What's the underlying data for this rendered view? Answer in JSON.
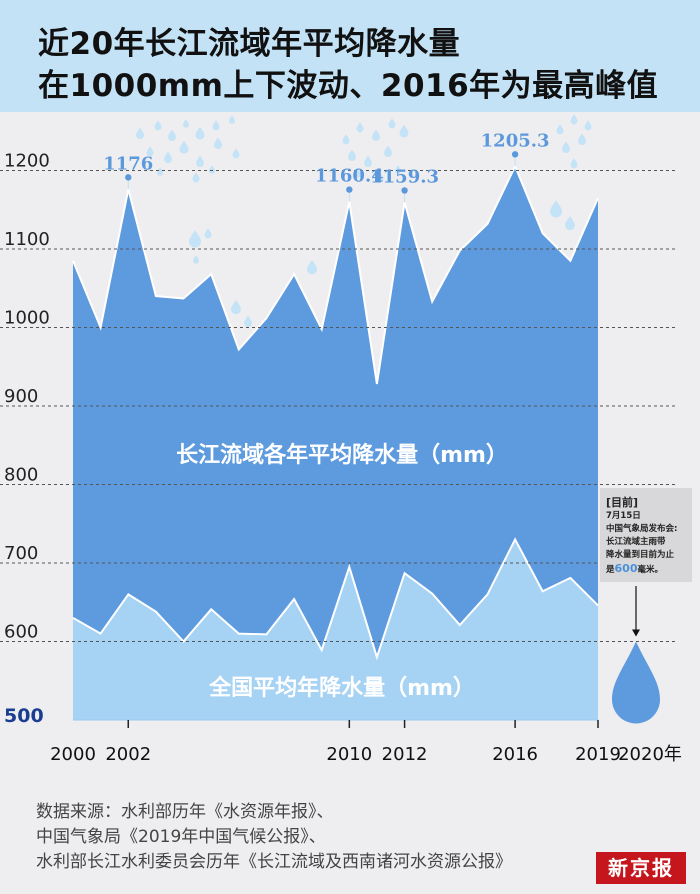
{
  "header": {
    "title_line1": "近20年长江流域年平均降水量",
    "title_line2": "在1000mm上下波动、2016年为最高峰值"
  },
  "chart_data": {
    "type": "area",
    "x": [
      2000,
      2001,
      2002,
      2003,
      2004,
      2005,
      2006,
      2007,
      2008,
      2009,
      2010,
      2011,
      2012,
      2013,
      2014,
      2015,
      2016,
      2017,
      2018,
      2019
    ],
    "series": [
      {
        "name": "长江流域各年平均降水量（mm）",
        "values": [
          1085,
          1000,
          1176,
          1040,
          1037,
          1068,
          972,
          1012,
          1068,
          998,
          1160.4,
          928,
          1159.3,
          1033,
          1098,
          1132,
          1205.3,
          1120,
          1085,
          1165
        ]
      },
      {
        "name": "全国平均年降水量（mm）",
        "values": [
          630,
          610,
          660,
          638,
          600,
          641,
          610,
          609,
          654,
          589,
          695,
          580,
          687,
          661,
          621,
          660,
          730,
          664,
          681,
          646
        ]
      }
    ],
    "ylim": [
      500,
      1250
    ],
    "yticks": [
      "1200",
      "1100",
      "1000",
      "900",
      "800",
      "700",
      "600",
      "500"
    ],
    "xtick_labels": [
      {
        "year": 2000,
        "label": "2000"
      },
      {
        "year": 2002,
        "label": "2002"
      },
      {
        "year": 2010,
        "label": "2010"
      },
      {
        "year": 2012,
        "label": "2012"
      },
      {
        "year": 2016,
        "label": "2016"
      },
      {
        "year": 2019,
        "label": "2019"
      },
      {
        "year": 2020,
        "label": "2020年"
      }
    ],
    "peak_labels": [
      {
        "year": 2002,
        "value": 1176,
        "label": "1176"
      },
      {
        "year": 2010,
        "value": 1160.4,
        "label": "1160.4"
      },
      {
        "year": 2012,
        "value": 1159.3,
        "label": "1159.3"
      },
      {
        "year": 2016,
        "value": 1205.3,
        "label": "1205.3"
      }
    ],
    "current_2020": {
      "year": 2020,
      "value": 600
    },
    "grid": "dashed",
    "colors": {
      "river": "#5e9bde",
      "national": "#a6d2f4",
      "label": "#5b98dc",
      "axis500": "#1a3d8f"
    }
  },
  "note": {
    "title": "[目前]",
    "line1": "7月15日",
    "line2": "中国气象局发布会:",
    "line3": "长江流域主雨带",
    "line4": "降水量到目前为止",
    "line5_pre": "是",
    "line5_value": "600",
    "line5_post": "毫米。"
  },
  "source": {
    "line1": "数据来源：水利部历年《水资源年报》、",
    "line2": "中国气象局《2019年中国气候公报》、",
    "line3": "水利部长江水利委员会历年《长江流域及西南诸河水资源公报》"
  },
  "logo": "新京报"
}
